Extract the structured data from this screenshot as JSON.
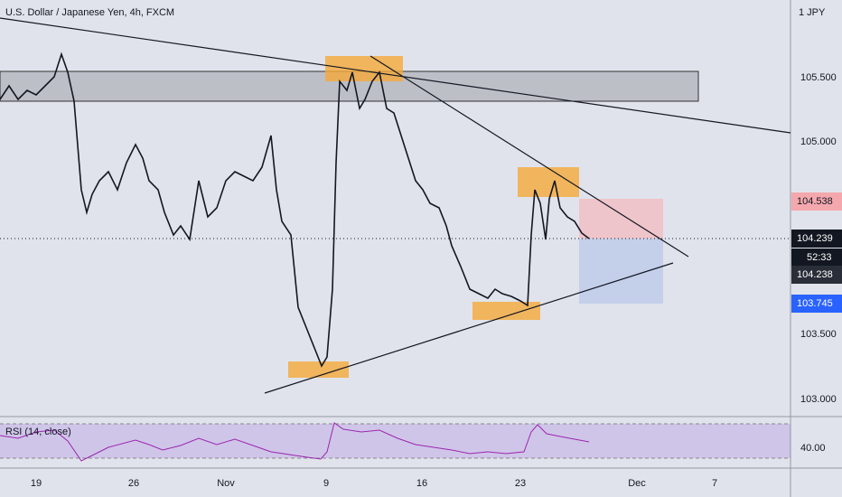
{
  "header": {
    "title": "U.S. Dollar / Japanese Yen, 4h, FXCM",
    "currency": "1 JPY"
  },
  "price_axis": [
    "105.500",
    "105.000",
    "103.500",
    "103.000"
  ],
  "badges": {
    "upper": "104.538",
    "last": "104.239",
    "countdown": "52:33",
    "mid": "104.238",
    "lower": "103.745"
  },
  "rsi": {
    "label": "RSI (14, close)",
    "level": "40.00"
  },
  "time_axis": [
    "19",
    "26",
    "Nov",
    "9",
    "16",
    "23",
    "Dec",
    "7"
  ]
}
